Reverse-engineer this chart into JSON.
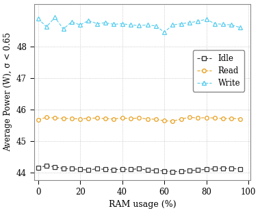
{
  "idle_x": [
    0,
    4,
    8,
    12,
    16,
    20,
    24,
    28,
    32,
    36,
    40,
    44,
    48,
    52,
    56,
    60,
    64,
    68,
    72,
    76,
    80,
    84,
    88,
    92,
    96
  ],
  "idle_y": [
    44.15,
    44.22,
    44.18,
    44.13,
    44.12,
    44.1,
    44.08,
    44.12,
    44.1,
    44.09,
    44.11,
    44.1,
    44.12,
    44.08,
    44.07,
    44.05,
    44.03,
    44.04,
    44.06,
    44.08,
    44.1,
    44.12,
    44.14,
    44.13,
    44.11
  ],
  "read_x": [
    0,
    4,
    8,
    12,
    16,
    20,
    24,
    28,
    32,
    36,
    40,
    44,
    48,
    52,
    56,
    60,
    64,
    68,
    72,
    76,
    80,
    84,
    88,
    92,
    96
  ],
  "read_y": [
    45.68,
    45.75,
    45.73,
    45.72,
    45.71,
    45.7,
    45.72,
    45.73,
    45.71,
    45.7,
    45.73,
    45.71,
    45.73,
    45.7,
    45.69,
    45.64,
    45.63,
    45.7,
    45.75,
    45.73,
    45.74,
    45.73,
    45.71,
    45.72,
    45.7
  ],
  "write_x": [
    0,
    4,
    8,
    12,
    16,
    20,
    24,
    28,
    32,
    36,
    40,
    44,
    48,
    52,
    56,
    60,
    64,
    68,
    72,
    76,
    80,
    84,
    88,
    92,
    96
  ],
  "write_y": [
    48.88,
    48.62,
    48.92,
    48.55,
    48.78,
    48.68,
    48.82,
    48.72,
    48.75,
    48.7,
    48.72,
    48.68,
    48.66,
    48.68,
    48.65,
    48.45,
    48.68,
    48.72,
    48.75,
    48.8,
    48.86,
    48.72,
    48.7,
    48.68,
    48.6
  ],
  "idle_color": "#333333",
  "read_color": "#E8A020",
  "write_color": "#55CCEE",
  "xlabel": "RAM usage (%)",
  "ylabel": "Average Power (W), σ < 0.65",
  "xlim": [
    -2,
    101
  ],
  "ylim": [
    43.75,
    49.35
  ],
  "yticks": [
    44,
    45,
    46,
    47,
    48
  ],
  "xticks": [
    0,
    20,
    40,
    60,
    80,
    100
  ],
  "background_color": "#ffffff",
  "grid_color": "#bbbbbb"
}
